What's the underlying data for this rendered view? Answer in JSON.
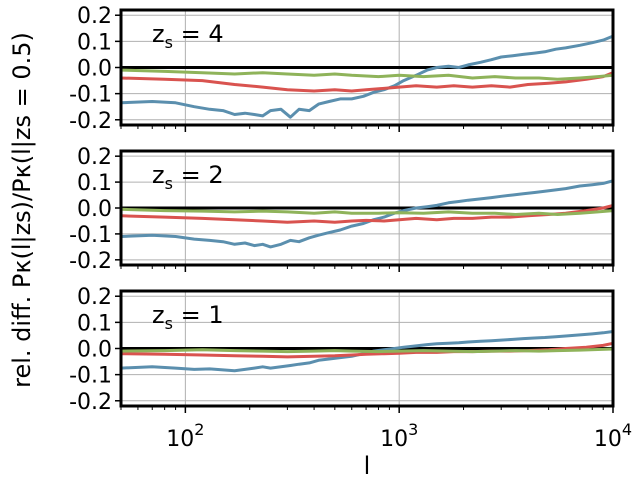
{
  "chart_data": {
    "type": "line",
    "xlabel": "l",
    "ylabel": "rel. diff.  Pκ(l|zs)/Pκ(l|zs = 0.5)",
    "xscale": "log",
    "xlim": [
      50,
      10000
    ],
    "ylim": [
      -0.22,
      0.22
    ],
    "yticks": [
      "-0.2",
      "-0.1",
      "0.0",
      "0.1",
      "0.2"
    ],
    "xtick_labels": [
      {
        "base": "10",
        "exp": "2",
        "value": 100
      },
      {
        "base": "10",
        "exp": "3",
        "value": 1000
      },
      {
        "base": "10",
        "exp": "4",
        "value": 10000
      }
    ],
    "grid": true,
    "colors": {
      "blue": "#5b8fae",
      "red": "#d9534f",
      "green": "#8fb35a",
      "zero_line": "#000000"
    },
    "panels": [
      {
        "label": "zs = 4",
        "label_base": "z",
        "label_sub": "s",
        "label_rest": " = 4",
        "series": [
          {
            "color": "blue",
            "x": [
              50,
              70,
              90,
              110,
              130,
              150,
              170,
              190,
              210,
              230,
              250,
              280,
              310,
              340,
              380,
              420,
              470,
              530,
              600,
              680,
              760,
              850,
              950,
              1050,
              1200,
              1350,
              1500,
              1700,
              1900,
              2100,
              2400,
              2700,
              3000,
              3400,
              3800,
              4300,
              4800,
              5400,
              6000,
              7000,
              8000,
              9000,
              10000
            ],
            "y": [
              -0.135,
              -0.13,
              -0.135,
              -0.15,
              -0.16,
              -0.165,
              -0.18,
              -0.175,
              -0.18,
              -0.185,
              -0.165,
              -0.16,
              -0.19,
              -0.16,
              -0.165,
              -0.14,
              -0.13,
              -0.12,
              -0.12,
              -0.11,
              -0.095,
              -0.085,
              -0.07,
              -0.05,
              -0.03,
              -0.01,
              0.0,
              0.005,
              0.0,
              0.01,
              0.02,
              0.03,
              0.04,
              0.045,
              0.05,
              0.055,
              0.06,
              0.07,
              0.075,
              0.085,
              0.095,
              0.105,
              0.12
            ]
          },
          {
            "color": "red",
            "x": [
              50,
              80,
              120,
              170,
              230,
              300,
              400,
              500,
              600,
              700,
              850,
              1000,
              1200,
              1500,
              1800,
              2200,
              2700,
              3300,
              4000,
              5000,
              6000,
              7500,
              9000,
              10000
            ],
            "y": [
              -0.04,
              -0.045,
              -0.05,
              -0.065,
              -0.075,
              -0.085,
              -0.09,
              -0.085,
              -0.09,
              -0.085,
              -0.08,
              -0.075,
              -0.07,
              -0.075,
              -0.07,
              -0.075,
              -0.07,
              -0.075,
              -0.065,
              -0.06,
              -0.055,
              -0.045,
              -0.035,
              -0.02
            ]
          },
          {
            "color": "green",
            "x": [
              50,
              80,
              120,
              170,
              230,
              300,
              400,
              500,
              600,
              800,
              1000,
              1300,
              1700,
              2200,
              2800,
              3500,
              4500,
              5500,
              7000,
              8500,
              10000
            ],
            "y": [
              -0.01,
              -0.015,
              -0.02,
              -0.025,
              -0.02,
              -0.025,
              -0.03,
              -0.025,
              -0.03,
              -0.035,
              -0.03,
              -0.035,
              -0.03,
              -0.04,
              -0.035,
              -0.04,
              -0.04,
              -0.045,
              -0.04,
              -0.035,
              -0.03
            ]
          }
        ]
      },
      {
        "label": "zs = 2",
        "label_base": "z",
        "label_sub": "s",
        "label_rest": " = 2",
        "series": [
          {
            "color": "blue",
            "x": [
              50,
              70,
              90,
              110,
              130,
              150,
              170,
              190,
              210,
              230,
              250,
              280,
              310,
              340,
              380,
              420,
              470,
              530,
              600,
              680,
              760,
              850,
              950,
              1050,
              1200,
              1350,
              1500,
              1700,
              1900,
              2100,
              2400,
              2700,
              3000,
              3400,
              3800,
              4300,
              4800,
              5400,
              6000,
              7000,
              8000,
              9000,
              10000
            ],
            "y": [
              -0.11,
              -0.105,
              -0.11,
              -0.12,
              -0.125,
              -0.13,
              -0.14,
              -0.135,
              -0.145,
              -0.14,
              -0.15,
              -0.14,
              -0.125,
              -0.13,
              -0.115,
              -0.105,
              -0.095,
              -0.085,
              -0.07,
              -0.06,
              -0.045,
              -0.035,
              -0.02,
              -0.01,
              0.0,
              0.005,
              0.01,
              0.02,
              0.025,
              0.03,
              0.035,
              0.04,
              0.045,
              0.05,
              0.055,
              0.06,
              0.065,
              0.07,
              0.075,
              0.085,
              0.09,
              0.095,
              0.105
            ]
          },
          {
            "color": "red",
            "x": [
              50,
              80,
              120,
              170,
              230,
              300,
              400,
              500,
              600,
              700,
              850,
              1000,
              1200,
              1500,
              1800,
              2200,
              2700,
              3300,
              4000,
              5000,
              6000,
              7500,
              9000,
              10000
            ],
            "y": [
              -0.03,
              -0.035,
              -0.04,
              -0.045,
              -0.05,
              -0.055,
              -0.05,
              -0.055,
              -0.05,
              -0.048,
              -0.05,
              -0.045,
              -0.04,
              -0.045,
              -0.04,
              -0.04,
              -0.035,
              -0.035,
              -0.03,
              -0.025,
              -0.02,
              -0.01,
              0.0,
              0.01
            ]
          },
          {
            "color": "green",
            "x": [
              50,
              80,
              120,
              170,
              230,
              300,
              400,
              500,
              600,
              800,
              1000,
              1300,
              1700,
              2200,
              2800,
              3500,
              4500,
              5500,
              7000,
              8500,
              10000
            ],
            "y": [
              -0.005,
              -0.01,
              -0.012,
              -0.015,
              -0.012,
              -0.015,
              -0.02,
              -0.015,
              -0.02,
              -0.02,
              -0.018,
              -0.02,
              -0.015,
              -0.02,
              -0.02,
              -0.025,
              -0.02,
              -0.025,
              -0.02,
              -0.015,
              -0.01
            ]
          }
        ]
      },
      {
        "label": "zs = 1",
        "label_base": "z",
        "label_sub": "s",
        "label_rest": " = 1",
        "series": [
          {
            "color": "blue",
            "x": [
              50,
              70,
              90,
              110,
              130,
              150,
              170,
              190,
              210,
              230,
              250,
              280,
              310,
              340,
              380,
              420,
              470,
              530,
              600,
              680,
              760,
              850,
              950,
              1050,
              1200,
              1350,
              1500,
              1700,
              1900,
              2100,
              2400,
              2700,
              3000,
              3400,
              3800,
              4300,
              4800,
              5400,
              6000,
              7000,
              8000,
              9000,
              10000
            ],
            "y": [
              -0.075,
              -0.07,
              -0.075,
              -0.08,
              -0.078,
              -0.082,
              -0.085,
              -0.08,
              -0.075,
              -0.07,
              -0.075,
              -0.07,
              -0.065,
              -0.06,
              -0.055,
              -0.045,
              -0.04,
              -0.035,
              -0.03,
              -0.02,
              -0.01,
              -0.005,
              0.0,
              0.005,
              0.01,
              0.015,
              0.018,
              0.02,
              0.022,
              0.025,
              0.028,
              0.03,
              0.032,
              0.035,
              0.038,
              0.04,
              0.042,
              0.045,
              0.048,
              0.052,
              0.056,
              0.06,
              0.065
            ]
          },
          {
            "color": "red",
            "x": [
              50,
              80,
              120,
              170,
              230,
              300,
              400,
              500,
              600,
              700,
              850,
              1000,
              1200,
              1500,
              1800,
              2200,
              2700,
              3300,
              4000,
              5000,
              6000,
              7500,
              9000,
              10000
            ],
            "y": [
              -0.02,
              -0.022,
              -0.025,
              -0.028,
              -0.03,
              -0.032,
              -0.03,
              -0.028,
              -0.025,
              -0.022,
              -0.02,
              -0.018,
              -0.015,
              -0.015,
              -0.012,
              -0.012,
              -0.01,
              -0.01,
              -0.008,
              -0.005,
              0.0,
              0.005,
              0.012,
              0.02
            ]
          },
          {
            "color": "green",
            "x": [
              50,
              80,
              120,
              170,
              230,
              300,
              400,
              500,
              600,
              800,
              1000,
              1300,
              1700,
              2200,
              2800,
              3500,
              4500,
              5500,
              7000,
              8500,
              10000
            ],
            "y": [
              -0.01,
              -0.008,
              -0.005,
              -0.008,
              -0.01,
              -0.012,
              -0.01,
              -0.008,
              -0.01,
              -0.012,
              -0.01,
              -0.008,
              -0.01,
              -0.012,
              -0.01,
              -0.008,
              -0.01,
              -0.008,
              -0.006,
              -0.004,
              -0.002
            ]
          }
        ]
      }
    ]
  }
}
